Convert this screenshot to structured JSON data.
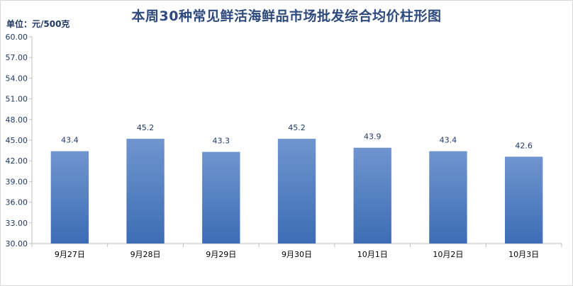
{
  "chart_data": {
    "type": "bar",
    "title": "本周30种常见鲜活海鲜品市场批发综合均价柱形图",
    "unit_label": "单位：元/500克",
    "categories": [
      "9月27日",
      "9月28日",
      "9月29日",
      "9月30日",
      "10月1日",
      "10月2日",
      "10月3日"
    ],
    "values": [
      43.4,
      45.2,
      43.3,
      45.2,
      43.9,
      43.4,
      42.6
    ],
    "data_labels": [
      "43.4",
      "45.2",
      "43.3",
      "45.2",
      "43.9",
      "43.4",
      "42.6"
    ],
    "ylim": [
      30,
      60
    ],
    "yticks": [
      "30.00",
      "33.00",
      "36.00",
      "39.00",
      "42.00",
      "45.00",
      "48.00",
      "51.00",
      "54.00",
      "57.00",
      "60.00"
    ],
    "ytick_values": [
      30,
      33,
      36,
      39,
      42,
      45,
      48,
      51,
      54,
      57,
      60
    ],
    "grid": false,
    "legend": "none",
    "colors": {
      "bar_top": "#6f95cf",
      "bar_bottom": "#3d6db5",
      "title": "#2e4a7d",
      "text": "#1f3864"
    }
  }
}
